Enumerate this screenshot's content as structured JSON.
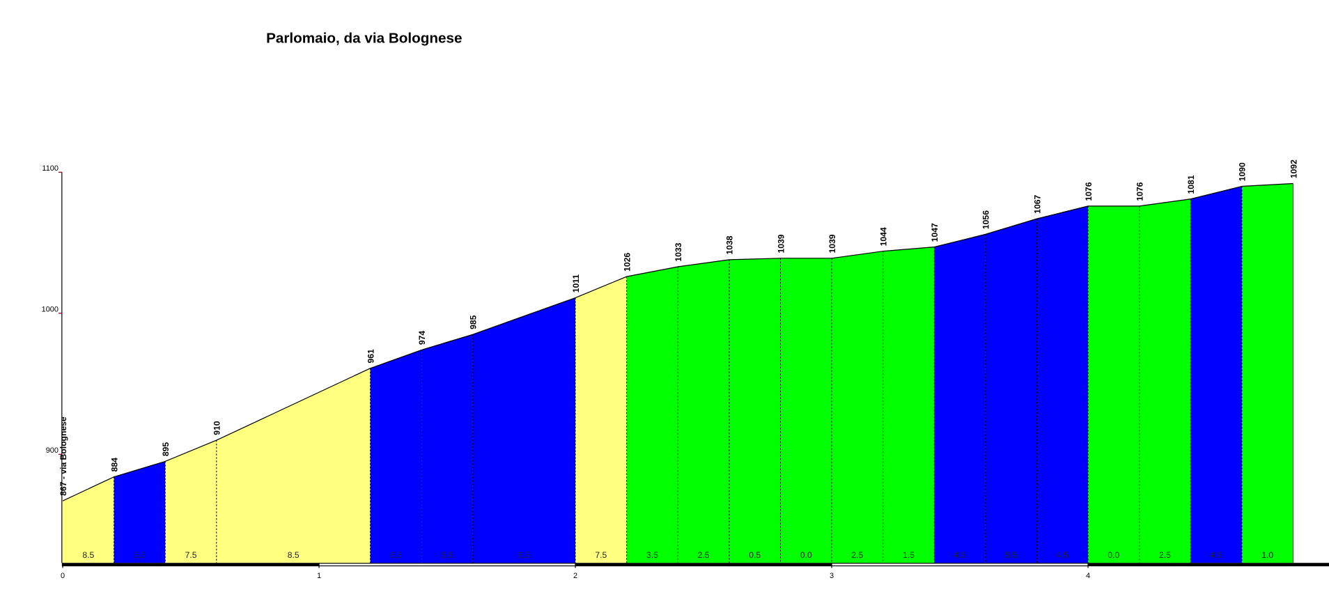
{
  "chart_data": {
    "type": "elevation-profile",
    "title": "Parlomaio, da via Bolognese",
    "x": [
      0,
      0.2,
      0.4,
      0.6,
      1.2,
      1.4,
      1.6,
      2.0,
      2.2,
      2.4,
      2.6,
      2.8,
      3.0,
      3.2,
      3.4,
      3.6,
      3.8,
      4.0,
      4.2,
      4.4,
      4.6,
      4.8
    ],
    "values": [
      867,
      884,
      895,
      910,
      961,
      974,
      985,
      1011,
      1026,
      1033,
      1038,
      1039,
      1039,
      1044,
      1047,
      1056,
      1067,
      1076,
      1076,
      1081,
      1090,
      1092
    ],
    "value_labels": [
      "867 - via Bolognese",
      "884",
      "895",
      "910",
      "961",
      "974",
      "985",
      "1011",
      "1026",
      "1033",
      "1038",
      "1039",
      "1039",
      "1044",
      "1047",
      "1056",
      "1067",
      "1076",
      "1076",
      "1081",
      "1090",
      "1092"
    ],
    "segments": {
      "values": [
        8.5,
        5.5,
        7.5,
        8.5,
        6.5,
        5.5,
        6.5,
        7.5,
        3.5,
        2.5,
        0.5,
        0.0,
        2.5,
        1.5,
        4.5,
        5.5,
        4.5,
        0.0,
        2.5,
        4.5,
        1.0
      ],
      "value_labels": [
        "8.5",
        "5.5",
        "7.5",
        "8.5",
        "6.5",
        "5.5",
        "6.5",
        "7.5",
        "3.5",
        "2.5",
        "0.5",
        "0.0",
        "2.5",
        "1.5",
        "4.5",
        "5.5",
        "4.5",
        "0.0",
        "2.5",
        "4.5",
        "1.0"
      ],
      "colors": [
        "#ffff80",
        "#0000ff",
        "#ffff80",
        "#ffff80",
        "#0000ff",
        "#0000ff",
        "#0000ff",
        "#ffff80",
        "#00ff00",
        "#00ff00",
        "#00ff00",
        "#00ff00",
        "#00ff00",
        "#00ff00",
        "#0000ff",
        "#0000ff",
        "#0000ff",
        "#00ff00",
        "#00ff00",
        "#0000ff",
        "#00ff00"
      ]
    },
    "xlim": [
      0,
      4.94
    ],
    "xticks": [
      0,
      1,
      2,
      3,
      4
    ],
    "ylim": [
      823,
      1100
    ],
    "yticks": [
      900,
      1000,
      1100
    ]
  }
}
